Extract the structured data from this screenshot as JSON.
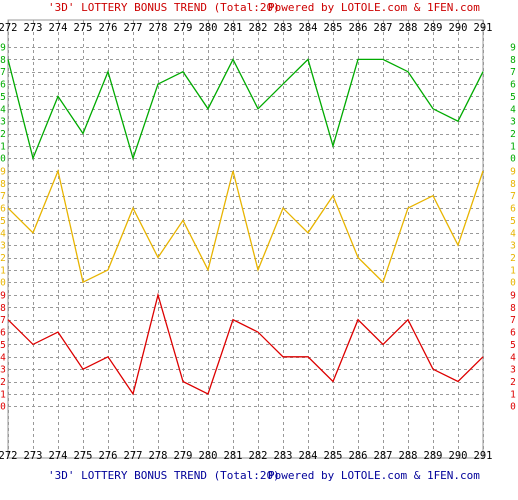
{
  "colors": {
    "header_top": "#cc0000",
    "header_bottom": "#000099",
    "grid": "#999999",
    "bands": [
      "#00aa00",
      "#e8b400",
      "#dd0000"
    ]
  },
  "header": {
    "top_title": "'3D' LOTTERY BONUS TREND (Total:20)",
    "top_credit": "Powered by LOTOLE.com & 1FEN.com",
    "bottom_title": "'3D' LOTTERY BONUS TREND (Total:20)",
    "bottom_credit": "Powered by LOTOLE.com & 1FEN.com"
  },
  "chart_data": {
    "type": "line",
    "title": "'3D' LOTTERY BONUS TREND (Total:20)",
    "categories": [
      "272",
      "273",
      "274",
      "275",
      "276",
      "277",
      "278",
      "279",
      "280",
      "281",
      "282",
      "283",
      "284",
      "285",
      "286",
      "287",
      "288",
      "289",
      "290",
      "291"
    ],
    "ylim": [
      0,
      9
    ],
    "y_ticks": [
      "0",
      "1",
      "2",
      "3",
      "4",
      "5",
      "6",
      "7",
      "8",
      "9"
    ],
    "grid": true,
    "series": [
      {
        "values": [
          8,
          0,
          5,
          2,
          7,
          0,
          6,
          7,
          4,
          8,
          4,
          6,
          8,
          1,
          8,
          8,
          7,
          4,
          3,
          7
        ]
      },
      {
        "values": [
          6,
          4,
          9,
          0,
          1,
          6,
          2,
          5,
          1,
          9,
          1,
          6,
          4,
          7,
          2,
          0,
          6,
          7,
          3,
          9
        ]
      },
      {
        "values": [
          7,
          5,
          6,
          3,
          4,
          1,
          9,
          2,
          1,
          7,
          6,
          4,
          4,
          2,
          7,
          5,
          7,
          3,
          2,
          4
        ]
      }
    ]
  }
}
